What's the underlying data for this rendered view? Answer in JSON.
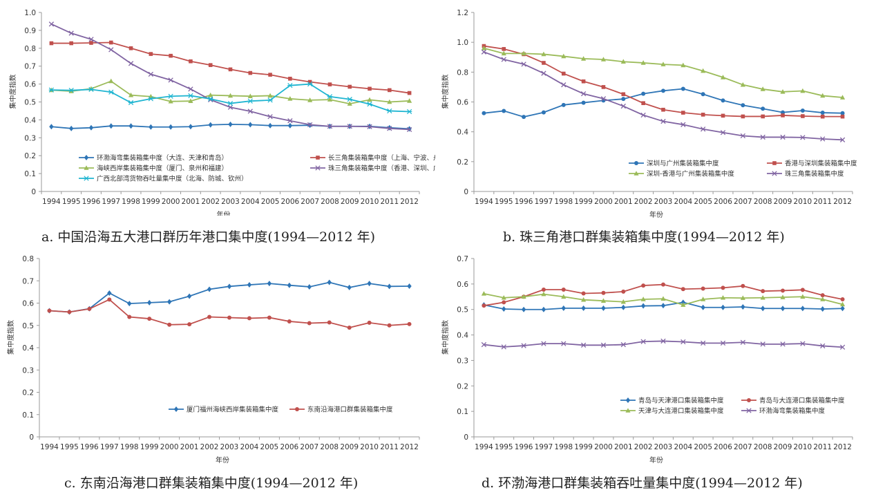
{
  "chart_data": [
    {
      "type": "line",
      "ylabel": "集中度指数",
      "xlabel": "年份",
      "caption": "a. 中国沿海五大港口群历年港口集中度(1994—2012 年)",
      "categories": [
        "1994",
        "1995",
        "1996",
        "1997",
        "1998",
        "1999",
        "2000",
        "2001",
        "2002",
        "2003",
        "2004",
        "2005",
        "2006",
        "2007",
        "2008",
        "2009",
        "2010",
        "2011",
        "2012"
      ],
      "ylim": [
        0,
        1.0
      ],
      "yticks": [
        "0",
        "0.1",
        "0.2",
        "0.3",
        "0.4",
        "0.5",
        "0.6",
        "0.7",
        "0.8",
        "0.9",
        "1.0"
      ],
      "legend_columns": 2,
      "series": [
        {
          "name": "环渤海弯集装箱集中度（大连、天津和青岛）",
          "color": "#2E75B6",
          "marker": "diamond",
          "values": [
            0.362,
            0.352,
            0.356,
            0.366,
            0.366,
            0.36,
            0.36,
            0.362,
            0.372,
            0.375,
            0.373,
            0.368,
            0.368,
            0.37,
            0.364,
            0.364,
            0.364,
            0.356,
            0.35
          ]
        },
        {
          "name": "长三角集装箱集中度（上海、宁波、舟山）",
          "color": "#C0504D",
          "marker": "square",
          "values": [
            0.828,
            0.828,
            0.83,
            0.832,
            0.8,
            0.768,
            0.758,
            0.727,
            0.706,
            0.682,
            0.662,
            0.652,
            0.63,
            0.612,
            0.598,
            0.585,
            0.574,
            0.566,
            0.55
          ]
        },
        {
          "name": "海峡西岸集装箱集中度（厦门、泉州和福建）",
          "color": "#9BBB59",
          "marker": "triangle",
          "values": [
            0.566,
            0.56,
            0.574,
            0.616,
            0.538,
            0.53,
            0.503,
            0.505,
            0.538,
            0.535,
            0.532,
            0.535,
            0.518,
            0.51,
            0.513,
            0.49,
            0.512,
            0.5,
            0.506
          ]
        },
        {
          "name": "珠三角集装箱集中度（香港、深圳、广州）",
          "color": "#8064A2",
          "marker": "x",
          "values": [
            0.935,
            0.884,
            0.85,
            0.792,
            0.715,
            0.655,
            0.622,
            0.572,
            0.512,
            0.47,
            0.448,
            0.418,
            0.395,
            0.373,
            0.364,
            0.364,
            0.362,
            0.352,
            0.346
          ]
        },
        {
          "name": "广西北部湾货物吞吐量集中度（北海、防城、钦州）",
          "color": "#1FB5D1",
          "marker": "star",
          "values": [
            0.567,
            0.565,
            0.57,
            0.555,
            0.496,
            0.518,
            0.532,
            0.535,
            0.517,
            0.492,
            0.505,
            0.51,
            0.592,
            0.6,
            0.53,
            0.515,
            0.488,
            0.45,
            0.446
          ]
        }
      ]
    },
    {
      "type": "line",
      "ylabel": "集中度指数",
      "xlabel": "年份",
      "caption": "b. 珠三角港口群集装箱集中度(1994—2012 年)",
      "categories": [
        "1994",
        "1995",
        "1996",
        "1997",
        "1998",
        "1999",
        "2000",
        "2001",
        "2002",
        "2003",
        "2004",
        "2005",
        "2006",
        "2007",
        "2008",
        "2009",
        "2010",
        "2011",
        "2012"
      ],
      "ylim": [
        0,
        1.2
      ],
      "yticks": [
        "0",
        "0.2",
        "0.4",
        "0.6",
        "0.8",
        "1.0",
        "1.2"
      ],
      "legend_columns": 2,
      "series": [
        {
          "name": "深圳与广州集装箱集中度",
          "color": "#2E75B6",
          "marker": "circle",
          "values": [
            0.525,
            0.54,
            0.5,
            0.53,
            0.58,
            0.595,
            0.61,
            0.62,
            0.655,
            0.675,
            0.688,
            0.652,
            0.61,
            0.578,
            0.555,
            0.53,
            0.542,
            0.528,
            0.525
          ]
        },
        {
          "name": "香港与深圳集装箱集中度",
          "color": "#C0504D",
          "marker": "square",
          "values": [
            0.975,
            0.955,
            0.92,
            0.862,
            0.79,
            0.738,
            0.7,
            0.652,
            0.592,
            0.548,
            0.528,
            0.515,
            0.508,
            0.503,
            0.503,
            0.51,
            0.505,
            0.502,
            0.502
          ]
        },
        {
          "name": "深圳-香港与广州集装箱集中度",
          "color": "#9BBB59",
          "marker": "triangle",
          "values": [
            0.96,
            0.925,
            0.925,
            0.92,
            0.906,
            0.89,
            0.885,
            0.87,
            0.862,
            0.852,
            0.846,
            0.808,
            0.765,
            0.715,
            0.686,
            0.668,
            0.674,
            0.642,
            0.63
          ]
        },
        {
          "name": "珠三角集装箱集中度",
          "color": "#8064A2",
          "marker": "x",
          "values": [
            0.935,
            0.885,
            0.853,
            0.792,
            0.715,
            0.655,
            0.622,
            0.572,
            0.512,
            0.47,
            0.448,
            0.418,
            0.395,
            0.373,
            0.364,
            0.364,
            0.362,
            0.352,
            0.346
          ]
        }
      ]
    },
    {
      "type": "line",
      "ylabel": "集中度指数",
      "xlabel": "年份",
      "caption": "c. 东南沿海港口群集装箱集中度(1994—2012 年)",
      "categories": [
        "1994",
        "1995",
        "1996",
        "1997",
        "1998",
        "1999",
        "2000",
        "2001",
        "2002",
        "2003",
        "2004",
        "2005",
        "2006",
        "2007",
        "2008",
        "2009",
        "2010",
        "2011",
        "2012"
      ],
      "ylim": [
        0,
        0.8
      ],
      "yticks": [
        "0",
        "0.1",
        "0.2",
        "0.3",
        "0.4",
        "0.5",
        "0.6",
        "0.7",
        "0.8"
      ],
      "legend_columns": 2,
      "series": [
        {
          "name": "厦门福州海峡西岸集装箱集中度",
          "color": "#2E75B6",
          "marker": "diamond",
          "values": [
            0.566,
            0.56,
            0.575,
            0.645,
            0.598,
            0.602,
            0.606,
            0.631,
            0.662,
            0.675,
            0.682,
            0.688,
            0.68,
            0.673,
            0.693,
            0.67,
            0.688,
            0.675,
            0.676
          ]
        },
        {
          "name": "东南沿海港口群集装箱集中度",
          "color": "#C0504D",
          "marker": "circle",
          "values": [
            0.566,
            0.56,
            0.574,
            0.616,
            0.538,
            0.53,
            0.503,
            0.505,
            0.538,
            0.535,
            0.532,
            0.535,
            0.518,
            0.51,
            0.513,
            0.49,
            0.512,
            0.5,
            0.506
          ]
        }
      ]
    },
    {
      "type": "line",
      "ylabel": "集中度指数",
      "xlabel": "年份",
      "caption": "d. 环渤海港口群集装箱吞吐量集中度(1994—2012 年)",
      "categories": [
        "1994",
        "1995",
        "1996",
        "1997",
        "1998",
        "1999",
        "2000",
        "2001",
        "2002",
        "2003",
        "2004",
        "2005",
        "2006",
        "2007",
        "2008",
        "2009",
        "2010",
        "2011",
        "2012"
      ],
      "ylim": [
        0,
        0.7
      ],
      "yticks": [
        "0",
        "0.1",
        "0.2",
        "0.3",
        "0.4",
        "0.5",
        "0.6",
        "0.7"
      ],
      "legend_columns": 2,
      "series": [
        {
          "name": "青岛与天津港口集装箱集中度",
          "color": "#2E75B6",
          "marker": "diamond",
          "values": [
            0.518,
            0.502,
            0.5,
            0.5,
            0.505,
            0.505,
            0.505,
            0.508,
            0.514,
            0.515,
            0.528,
            0.508,
            0.508,
            0.51,
            0.504,
            0.504,
            0.504,
            0.502,
            0.504
          ]
        },
        {
          "name": "青岛与大连港口集装箱集中度",
          "color": "#C0504D",
          "marker": "circle",
          "values": [
            0.515,
            0.528,
            0.55,
            0.578,
            0.578,
            0.563,
            0.565,
            0.57,
            0.594,
            0.598,
            0.58,
            0.582,
            0.585,
            0.592,
            0.572,
            0.574,
            0.577,
            0.556,
            0.54
          ]
        },
        {
          "name": "天津与大连港口集装箱集中度",
          "color": "#9BBB59",
          "marker": "triangle",
          "values": [
            0.562,
            0.546,
            0.55,
            0.56,
            0.55,
            0.538,
            0.534,
            0.53,
            0.54,
            0.542,
            0.518,
            0.54,
            0.546,
            0.545,
            0.546,
            0.548,
            0.55,
            0.54,
            0.52
          ]
        },
        {
          "name": "环渤海弯集装箱集中度",
          "color": "#8064A2",
          "marker": "x",
          "values": [
            0.362,
            0.353,
            0.358,
            0.366,
            0.366,
            0.36,
            0.36,
            0.362,
            0.374,
            0.376,
            0.373,
            0.368,
            0.368,
            0.371,
            0.364,
            0.364,
            0.366,
            0.357,
            0.352
          ]
        }
      ]
    }
  ]
}
